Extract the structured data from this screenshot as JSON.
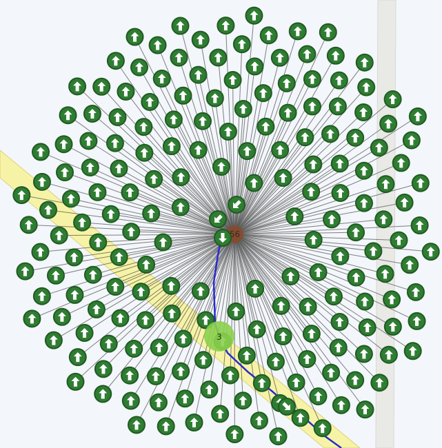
{
  "map": {
    "background": "#f3f6fa",
    "road_color": "#f7f3a6",
    "road_edge_color": "#d9d27a",
    "side_road_color": "#e9e9e6",
    "spider_line_color": "#555555",
    "route_color": "#2a2ad0",
    "marker_fill": "#2f7d32",
    "marker_ring": "#1f5a22",
    "marker_icon": "up-arrow-icon",
    "cluster": {
      "label": "56",
      "color": "#8b4a2b"
    },
    "small_cluster": {
      "label": "3",
      "color": "#8bd04e"
    },
    "marker_count": 200
  }
}
